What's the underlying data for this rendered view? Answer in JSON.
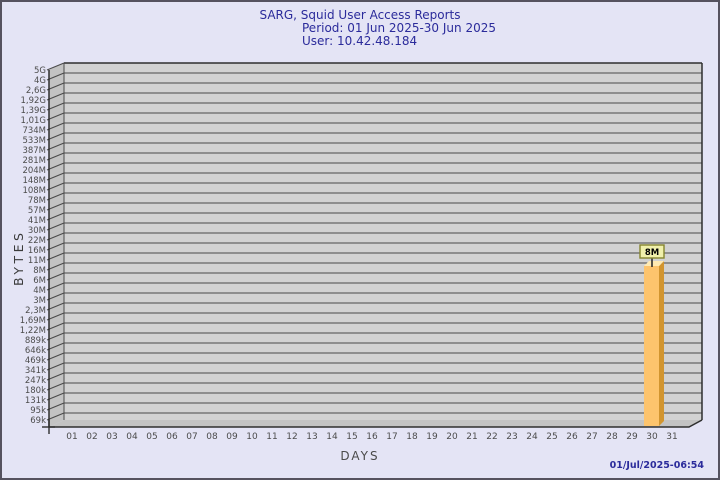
{
  "window": {
    "border_color": "#55525f",
    "background": "#e4e4f5"
  },
  "footer": {
    "timestamp": "01/Jul/2025-06:54"
  },
  "chart_data": {
    "type": "bar",
    "title": "SARG, Squid User Access Reports",
    "subtitle_period": "Period: 01 Jun 2025-30 Jun 2025",
    "subtitle_user": "User: 10.42.48.184",
    "xlabel": "DAYS",
    "ylabel": "BYTES",
    "y_scale": "log",
    "grid": true,
    "y_tick_labels": [
      "5G",
      "4G",
      "2,6G",
      "1,92G",
      "1,39G",
      "1,01G",
      "734M",
      "533M",
      "387M",
      "281M",
      "204M",
      "148M",
      "108M",
      "78M",
      "57M",
      "41M",
      "30M",
      "22M",
      "16M",
      "11M",
      "8M",
      "6M",
      "4M",
      "3M",
      "2,3M",
      "1,69M",
      "1,22M",
      "889k",
      "646k",
      "469k",
      "341k",
      "247k",
      "180k",
      "131k",
      "95k",
      "69k"
    ],
    "categories": [
      "01",
      "02",
      "03",
      "04",
      "05",
      "06",
      "07",
      "08",
      "09",
      "10",
      "11",
      "12",
      "13",
      "14",
      "15",
      "16",
      "17",
      "18",
      "19",
      "20",
      "21",
      "22",
      "23",
      "24",
      "25",
      "26",
      "27",
      "28",
      "29",
      "30",
      "31"
    ],
    "values": [
      0,
      0,
      0,
      0,
      0,
      0,
      0,
      0,
      0,
      0,
      0,
      0,
      0,
      0,
      0,
      0,
      0,
      0,
      0,
      0,
      0,
      0,
      0,
      0,
      0,
      0,
      0,
      0,
      0,
      8000000,
      0
    ],
    "bars": [
      {
        "day": "30",
        "label": "8M",
        "value_bytes": 8000000
      }
    ],
    "colors": {
      "title_text": "#2b2b9b",
      "tick_text": "#4c4c4c",
      "wall": "#d2d2d2",
      "side_wall": "#c3c3c3",
      "floor": "#c3c3c3",
      "gridline": "#4b4b4b",
      "edge": "#2e2e2e",
      "bar_front": "#fdc46d",
      "bar_side": "#d2952f",
      "bar_top": "#ffeab2",
      "value_label_bg": "#f0f0ab",
      "value_label_border": "#85852e",
      "value_label_text": "#000000"
    }
  }
}
